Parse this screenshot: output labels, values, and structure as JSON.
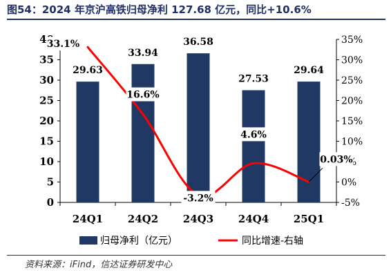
{
  "title": "图54：2024 年京沪高铁归母净利 127.68 亿元，同比+10.6%",
  "source": "资料来源：iFind，信达证券研发中心",
  "colors": {
    "bar": "#1f3864",
    "line": "#ff0000",
    "rule": "#1f2f63",
    "axis": "#000000"
  },
  "chart_data": {
    "type": "bar",
    "categories": [
      "24Q1",
      "24Q2",
      "24Q3",
      "24Q4",
      "25Q1"
    ],
    "series": [
      {
        "name": "归母净利（亿元）",
        "type": "bar",
        "axis": "left",
        "values": [
          29.63,
          33.94,
          36.58,
          27.53,
          29.64
        ],
        "labels": [
          "29.63",
          "33.94",
          "36.58",
          "27.53",
          "29.64"
        ]
      },
      {
        "name": "同比增速-右轴",
        "type": "line",
        "axis": "right",
        "values": [
          33.1,
          16.6,
          -3.2,
          4.6,
          0.03
        ],
        "labels": [
          "33.1%",
          "16.6%",
          "-3.2%",
          "4.6%",
          "0.03%"
        ]
      }
    ],
    "y_left": {
      "min": 0,
      "max": 40,
      "ticks": [
        "0",
        "5",
        "10",
        "15",
        "20",
        "25",
        "30",
        "35",
        "40"
      ]
    },
    "y_right": {
      "min": -5,
      "max": 35,
      "ticks": [
        "-5%",
        "0%",
        "5%",
        "10%",
        "15%",
        "20%",
        "25%",
        "30%",
        "35%"
      ]
    },
    "grid": false,
    "legend_position": "bottom"
  }
}
